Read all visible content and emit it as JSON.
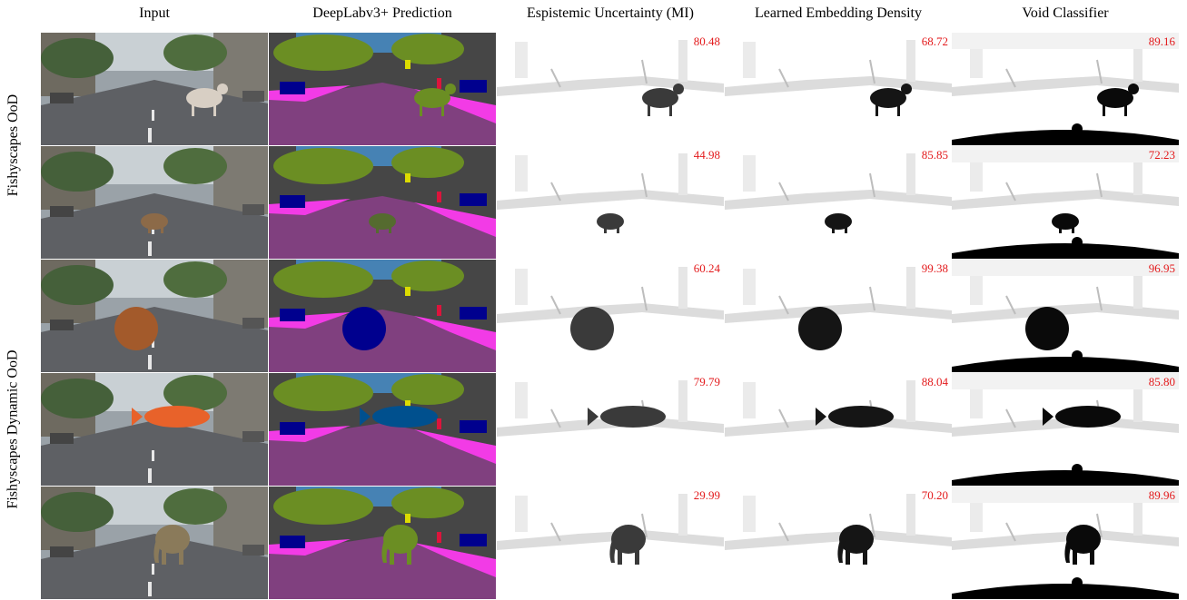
{
  "columns": [
    "Input",
    "DeepLabv3+ Prediction",
    "Espistemic Uncertainty (MI)",
    "Learned Embedding Density",
    "Void Classifier"
  ],
  "row_groups": [
    "Fishyscapes OoD",
    "Fishyscapes Dynamic OoD"
  ],
  "rows": [
    {
      "object": "cow",
      "scores": [
        "80.48",
        "68.72",
        "89.16"
      ]
    },
    {
      "object": "sheep",
      "scores": [
        "44.98",
        "85.85",
        "72.23"
      ]
    },
    {
      "object": "basketball",
      "scores": [
        "60.24",
        "99.38",
        "96.95"
      ]
    },
    {
      "object": "clownfish",
      "scores": [
        "79.79",
        "88.04",
        "85.80"
      ]
    },
    {
      "object": "elephant",
      "scores": [
        "29.99",
        "70.20",
        "89.96"
      ]
    }
  ],
  "colors": {
    "score": "#e31a1c",
    "road": "#80407f",
    "sidewalk": "#f23be6",
    "vegetation": "#6b8e23",
    "sky": "#4682b4",
    "building": "#464646",
    "car": "#00008e",
    "person": "#dc143c",
    "sign": "#dcdc00"
  }
}
